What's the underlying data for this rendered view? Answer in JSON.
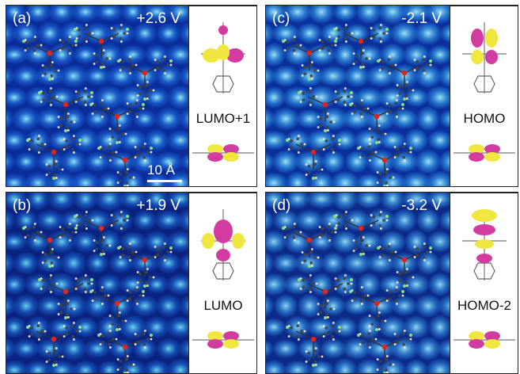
{
  "figure": {
    "panels": [
      {
        "id": "a",
        "label": "(a)",
        "voltage": "+2.6 V",
        "orbital": "LUMO+1",
        "colors": {
          "dark": "#0a2d9a",
          "mid": "#1f6ad8",
          "light": "#8ae6f5"
        }
      },
      {
        "id": "b",
        "label": "(b)",
        "voltage": "+1.9 V",
        "orbital": "LUMO",
        "colors": {
          "dark": "#0a2380",
          "mid": "#1b5fc8",
          "light": "#6bd4f0"
        }
      },
      {
        "id": "c",
        "label": "(c)",
        "voltage": "-2.1 V",
        "orbital": "HOMO",
        "colors": {
          "dark": "#0b2f9c",
          "mid": "#2d8fe0",
          "light": "#9fe4f6"
        }
      },
      {
        "id": "d",
        "label": "(d)",
        "voltage": "-3.2 V",
        "orbital": "HOMO-2",
        "colors": {
          "dark": "#0c2a8a",
          "mid": "#2f84d6",
          "light": "#8fd8f2"
        }
      }
    ],
    "scale_bar": "10 Å",
    "orbital_colors": {
      "positive": "#f0e640",
      "negative": "#d23ca0"
    }
  }
}
